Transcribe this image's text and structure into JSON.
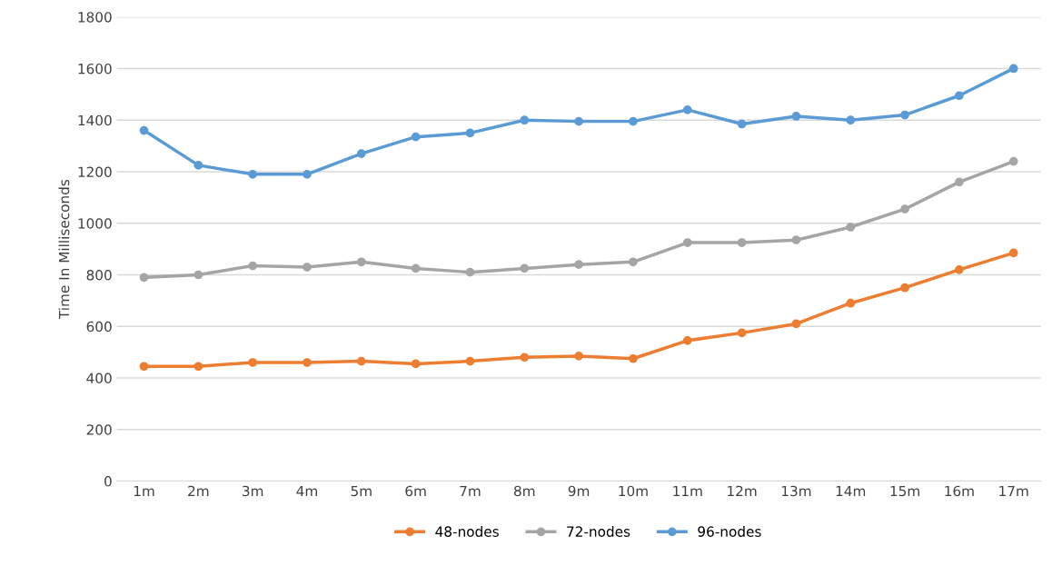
{
  "chart_data": {
    "type": "line",
    "ylabel": "Time In Milliseconds",
    "categories": [
      "1m",
      "2m",
      "3m",
      "4m",
      "5m",
      "6m",
      "7m",
      "8m",
      "9m",
      "10m",
      "11m",
      "12m",
      "13m",
      "14m",
      "15m",
      "16m",
      "17m"
    ],
    "series": [
      {
        "name": "48-nodes",
        "color": "#ed7d31",
        "values": [
          445,
          445,
          460,
          460,
          465,
          455,
          465,
          480,
          485,
          475,
          545,
          575,
          610,
          690,
          750,
          820,
          885
        ]
      },
      {
        "name": "72-nodes",
        "color": "#a5a5a5",
        "values": [
          790,
          800,
          835,
          830,
          850,
          825,
          810,
          825,
          840,
          850,
          925,
          925,
          935,
          985,
          1055,
          1160,
          1240
        ]
      },
      {
        "name": "96-nodes",
        "color": "#5b9bd5",
        "values": [
          1360,
          1225,
          1190,
          1190,
          1270,
          1335,
          1350,
          1400,
          1395,
          1395,
          1440,
          1385,
          1415,
          1400,
          1420,
          1495,
          1600
        ]
      }
    ],
    "ylim": [
      0,
      1800
    ],
    "yticks": [
      0,
      200,
      400,
      600,
      800,
      1000,
      1200,
      1400,
      1600,
      1800
    ],
    "grid": "y",
    "legend": "bottom",
    "marker": "circle",
    "line_style": "solid"
  }
}
